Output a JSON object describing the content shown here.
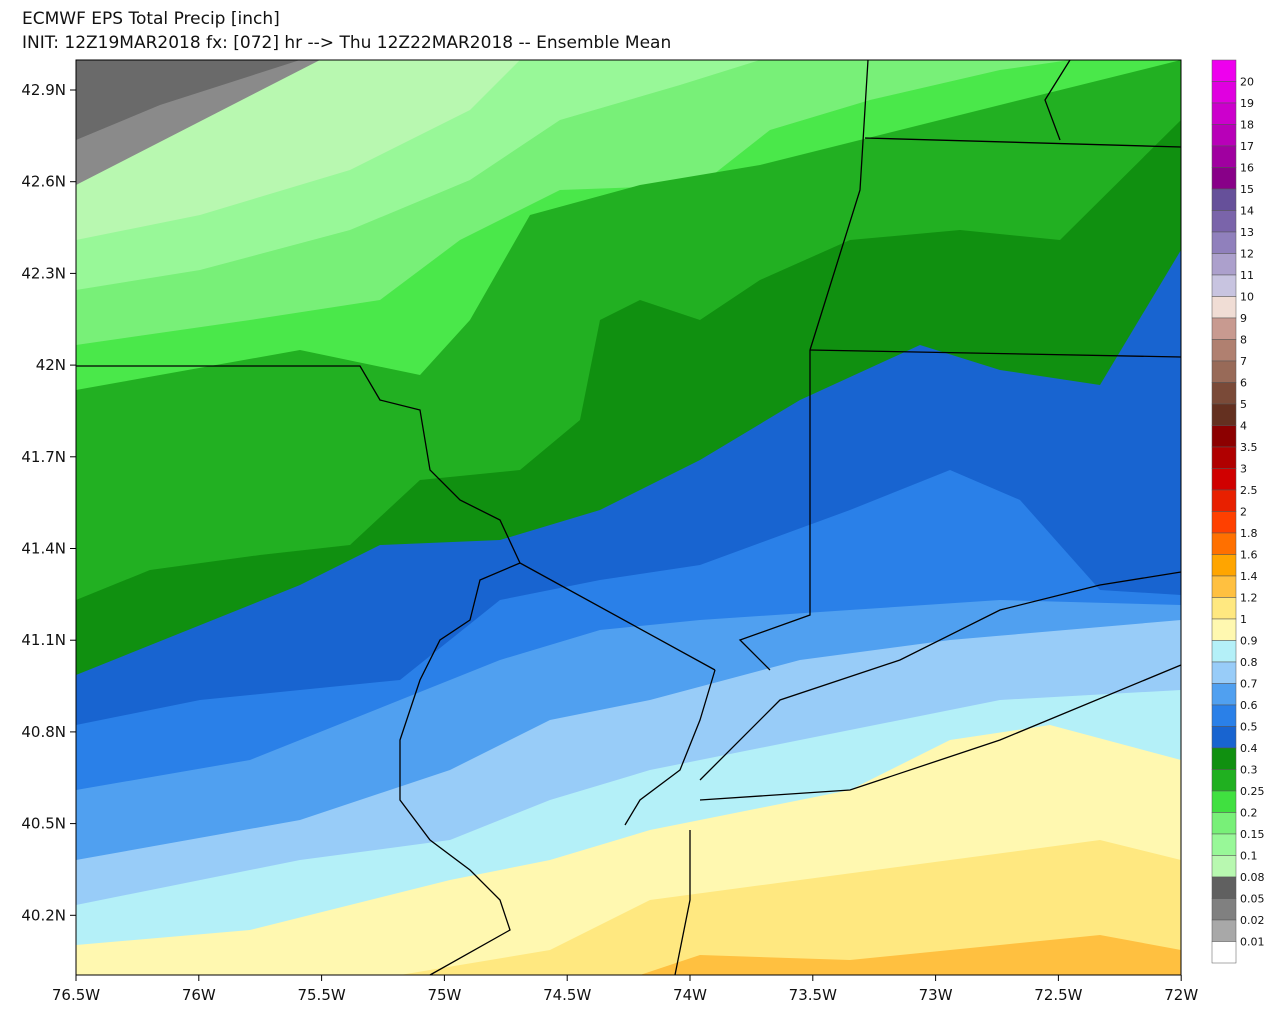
{
  "header": {
    "title": "ECMWF EPS Total Precip [inch]",
    "subtitle": "INIT: 12Z19MAR2018 fx: [072] hr --> Thu 12Z22MAR2018 -- Ensemble Mean"
  },
  "map": {
    "lat_labels": [
      "42.9N",
      "42.6N",
      "42.3N",
      "42N",
      "41.7N",
      "41.4N",
      "41.1N",
      "40.8N",
      "40.5N",
      "40.2N"
    ],
    "lon_labels": [
      "76.5W",
      "76W",
      "75.5W",
      "75W",
      "74.5W",
      "74W",
      "73.5W",
      "73W",
      "72.5W",
      "72W"
    ]
  },
  "colorbar": {
    "labels": [
      20,
      19,
      18,
      17,
      16,
      15,
      14,
      13,
      12,
      11,
      10,
      9,
      8,
      7,
      6,
      5,
      4,
      3.5,
      3,
      2.5,
      2,
      1.8,
      1.6,
      1.4,
      1.2,
      1,
      0.9,
      0.8,
      0.7,
      0.6,
      0.5,
      0.4,
      0.3,
      0.25,
      0.2,
      0.15,
      0.1,
      0.08,
      0.05,
      0.02,
      0.01
    ],
    "colors": [
      "#ee00ee",
      "#e000e0",
      "#cc00cc",
      "#b800b8",
      "#a000a0",
      "#880088",
      "#66509a",
      "#7a64aa",
      "#9080bc",
      "#aca0cc",
      "#c8c4e0",
      "#f0ddd5",
      "#c89a90",
      "#b08070",
      "#986a58",
      "#7a4a38",
      "#643020",
      "#8c0000",
      "#b00000",
      "#d00000",
      "#e82000",
      "#ff4000",
      "#ff7000",
      "#ffa500",
      "#ffc040",
      "#ffe880",
      "#fff8b0",
      "#b4f0f8",
      "#98ccf8",
      "#50a0f0",
      "#2a80e8",
      "#1864d0",
      "#109010",
      "#20b020",
      "#40e040",
      "#78f078",
      "#98f898",
      "#b8f8b0",
      "#606060",
      "#808080",
      "#a8a8a8",
      "#ffffff"
    ]
  }
}
